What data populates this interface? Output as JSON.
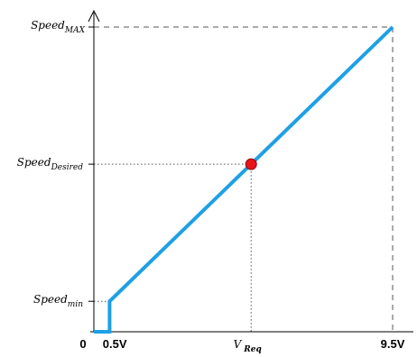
{
  "chart_data": {
    "type": "line",
    "x_ticks": [
      "0",
      "0.5V",
      "V",
      "9.5V"
    ],
    "x_req_subscript": "Req",
    "y_ticks": [
      {
        "base": "Speed",
        "sub": "MAX"
      },
      {
        "base": "Speed",
        "sub": "Desired"
      },
      {
        "base": "Speed",
        "sub": "min"
      }
    ],
    "series": [
      {
        "x": [
          0,
          0.5,
          0.5,
          9.5
        ],
        "y": [
          0,
          0,
          0.1,
          1.0
        ]
      }
    ],
    "marker": {
      "x": 5.0,
      "y": 0.55
    },
    "xlim": [
      0,
      9.5
    ],
    "ylim": [
      0,
      1.0
    ],
    "grid": false,
    "colors": {
      "line": "#1ea0e6",
      "marker": "#e8141a",
      "axis": "#000000",
      "dashed": "#555555"
    }
  }
}
